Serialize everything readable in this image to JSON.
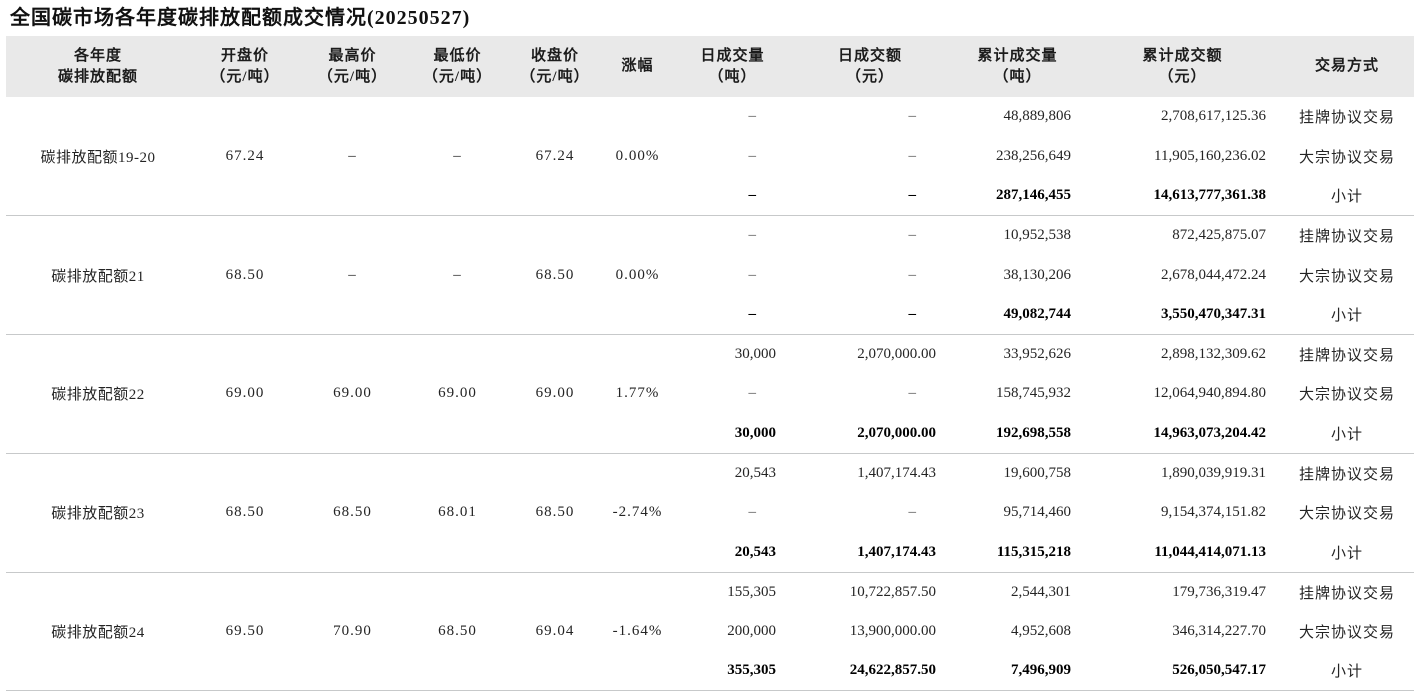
{
  "page": {
    "title": "全国碳市场各年度碳排放配额成交情况(20250527)"
  },
  "chart_data": {
    "type": "table",
    "title": "全国碳市场各年度碳排放配额成交情况(20250527)",
    "headers": [
      {
        "key": "name",
        "l1": "各年度",
        "l2": "碳排放配额"
      },
      {
        "key": "open",
        "l1": "开盘价",
        "l2": "（元/吨）"
      },
      {
        "key": "high",
        "l1": "最高价",
        "l2": "（元/吨）"
      },
      {
        "key": "low",
        "l1": "最低价",
        "l2": "（元/吨）"
      },
      {
        "key": "close",
        "l1": "收盘价",
        "l2": "（元/吨）"
      },
      {
        "key": "change",
        "l1": "涨幅",
        "l2": ""
      },
      {
        "key": "daily_volume",
        "l1": "日成交量",
        "l2": "（吨）"
      },
      {
        "key": "daily_amount",
        "l1": "日成交额",
        "l2": "（元）"
      },
      {
        "key": "cum_volume",
        "l1": "累计成交量",
        "l2": "（吨）"
      },
      {
        "key": "cum_amount",
        "l1": "累计成交额",
        "l2": "（元）"
      },
      {
        "key": "method",
        "l1": "交易方式",
        "l2": ""
      }
    ],
    "groups": [
      {
        "key": "19-20",
        "name": "碳排放配额19-20",
        "open": "67.24",
        "high": "–",
        "low": "–",
        "close": "67.24",
        "change": "0.00%",
        "rows": [
          {
            "daily_volume": "–",
            "daily_amount": "–",
            "cum_volume": "48,889,806",
            "cum_amount": "2,708,617,125.36",
            "method": "挂牌协议交易"
          },
          {
            "daily_volume": "–",
            "daily_amount": "–",
            "cum_volume": "238,256,649",
            "cum_amount": "11,905,160,236.02",
            "method": "大宗协议交易"
          },
          {
            "daily_volume": "–",
            "daily_amount": "–",
            "cum_volume": "287,146,455",
            "cum_amount": "14,613,777,361.38",
            "method": "小计"
          }
        ]
      },
      {
        "key": "21",
        "name": "碳排放配额21",
        "open": "68.50",
        "high": "–",
        "low": "–",
        "close": "68.50",
        "change": "0.00%",
        "rows": [
          {
            "daily_volume": "–",
            "daily_amount": "–",
            "cum_volume": "10,952,538",
            "cum_amount": "872,425,875.07",
            "method": "挂牌协议交易"
          },
          {
            "daily_volume": "–",
            "daily_amount": "–",
            "cum_volume": "38,130,206",
            "cum_amount": "2,678,044,472.24",
            "method": "大宗协议交易"
          },
          {
            "daily_volume": "–",
            "daily_amount": "–",
            "cum_volume": "49,082,744",
            "cum_amount": "3,550,470,347.31",
            "method": "小计"
          }
        ]
      },
      {
        "key": "22",
        "name": "碳排放配额22",
        "open": "69.00",
        "high": "69.00",
        "low": "69.00",
        "close": "69.00",
        "change": "1.77%",
        "rows": [
          {
            "daily_volume": "30,000",
            "daily_amount": "2,070,000.00",
            "cum_volume": "33,952,626",
            "cum_amount": "2,898,132,309.62",
            "method": "挂牌协议交易"
          },
          {
            "daily_volume": "–",
            "daily_amount": "–",
            "cum_volume": "158,745,932",
            "cum_amount": "12,064,940,894.80",
            "method": "大宗协议交易"
          },
          {
            "daily_volume": "30,000",
            "daily_amount": "2,070,000.00",
            "cum_volume": "192,698,558",
            "cum_amount": "14,963,073,204.42",
            "method": "小计"
          }
        ]
      },
      {
        "key": "23",
        "name": "碳排放配额23",
        "open": "68.50",
        "high": "68.50",
        "low": "68.01",
        "close": "68.50",
        "change": "-2.74%",
        "rows": [
          {
            "daily_volume": "20,543",
            "daily_amount": "1,407,174.43",
            "cum_volume": "19,600,758",
            "cum_amount": "1,890,039,919.31",
            "method": "挂牌协议交易"
          },
          {
            "daily_volume": "–",
            "daily_amount": "–",
            "cum_volume": "95,714,460",
            "cum_amount": "9,154,374,151.82",
            "method": "大宗协议交易"
          },
          {
            "daily_volume": "20,543",
            "daily_amount": "1,407,174.43",
            "cum_volume": "115,315,218",
            "cum_amount": "11,044,414,071.13",
            "method": "小计"
          }
        ]
      },
      {
        "key": "24",
        "name": "碳排放配额24",
        "open": "69.50",
        "high": "70.90",
        "low": "68.50",
        "close": "69.04",
        "change": "-1.64%",
        "rows": [
          {
            "daily_volume": "155,305",
            "daily_amount": "10,722,857.50",
            "cum_volume": "2,544,301",
            "cum_amount": "179,736,319.47",
            "method": "挂牌协议交易"
          },
          {
            "daily_volume": "200,000",
            "daily_amount": "13,900,000.00",
            "cum_volume": "4,952,608",
            "cum_amount": "346,314,227.70",
            "method": "大宗协议交易"
          },
          {
            "daily_volume": "355,305",
            "daily_amount": "24,622,857.50",
            "cum_volume": "7,496,909",
            "cum_amount": "526,050,547.17",
            "method": "小计"
          }
        ]
      }
    ],
    "colors": {
      "header_background": "#e9e9e9",
      "separator_line": "#c7c9ca",
      "text": "#222222"
    }
  }
}
